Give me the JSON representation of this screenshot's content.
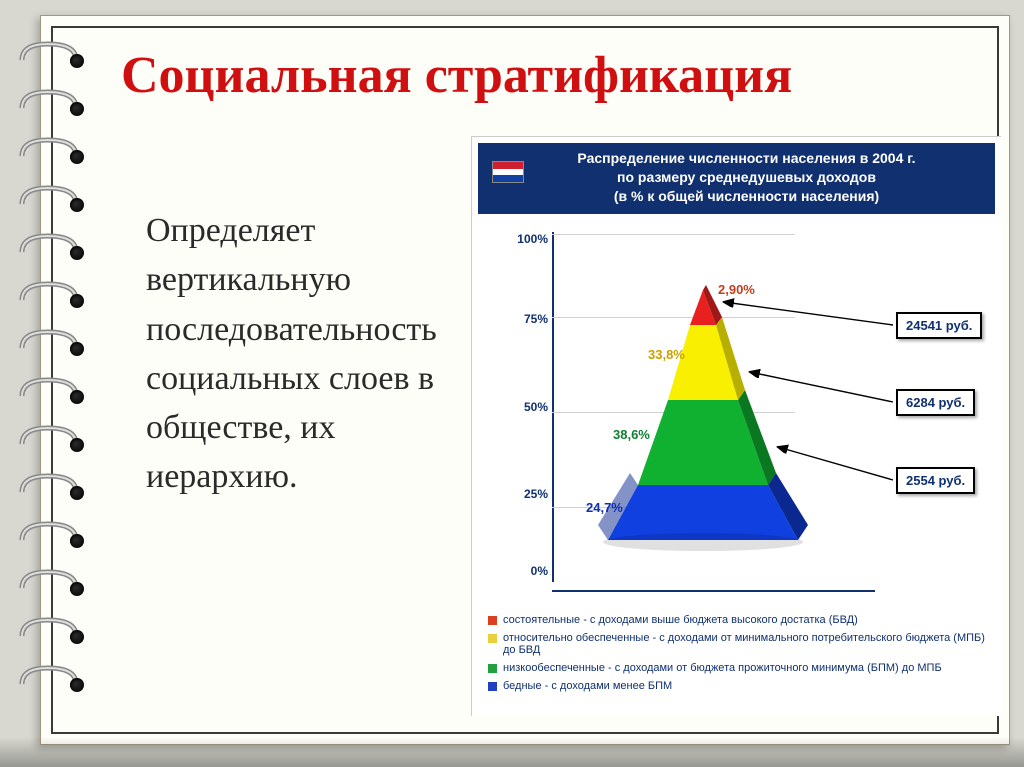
{
  "title": "Социальная стратификация",
  "body_text": "  Определяет вертикальную последовательность социальных слоев в обществе, их иерархию.",
  "chart": {
    "type": "pyramid-3d",
    "header": {
      "line1": "Распределение численности населения в 2004 г.",
      "line2": "по размеру среднедушевых доходов",
      "line3": "(в % к общей численности населения)",
      "bg_color": "#103070",
      "text_color": "#ffffff",
      "fontsize": 14
    },
    "flag_colors": [
      "#d02030",
      "#ffffff",
      "#1040a0"
    ],
    "y_axis": {
      "ticks": [
        "0%",
        "25%",
        "50%",
        "75%",
        "100%"
      ],
      "positions_pct": [
        100,
        75,
        50,
        25,
        0
      ],
      "color": "#103070",
      "fontsize": 12
    },
    "layers": [
      {
        "pct_label": "2,90%",
        "label_color": "#c04020",
        "value": 2.9,
        "face_color": "#e82020",
        "side_color": "#a01818",
        "callout": "24541 руб."
      },
      {
        "pct_label": "33,8%",
        "label_color": "#c8a000",
        "value": 33.8,
        "face_color": "#f8f000",
        "side_color": "#b8b000",
        "callout": "6284 руб."
      },
      {
        "pct_label": "38,6%",
        "label_color": "#108030",
        "value": 38.6,
        "face_color": "#10b030",
        "side_color": "#0a7820",
        "callout": "2554 руб."
      },
      {
        "pct_label": "24,7%",
        "label_color": "#1030b0",
        "value": 24.7,
        "face_color": "#1040e0",
        "side_color": "#0a2890",
        "callout": null
      }
    ],
    "legend": [
      {
        "swatch": "#d84020",
        "text": "состоятельные - с доходами выше бюджета высокого достатка (БВД)"
      },
      {
        "swatch": "#e8d040",
        "text": "относительно обеспеченные - с доходами от минимального потребительского бюджета (МПБ) до БВД"
      },
      {
        "swatch": "#20a040",
        "text": "низкообеспеченные - с доходами от бюджета прожиточного минимума (БПМ) до МПБ"
      },
      {
        "swatch": "#2040c0",
        "text": "бедные - с доходами менее БПМ"
      }
    ],
    "background_color": "#ffffff"
  },
  "page": {
    "bg": "#fefef8",
    "border": "#3a3a3a"
  }
}
